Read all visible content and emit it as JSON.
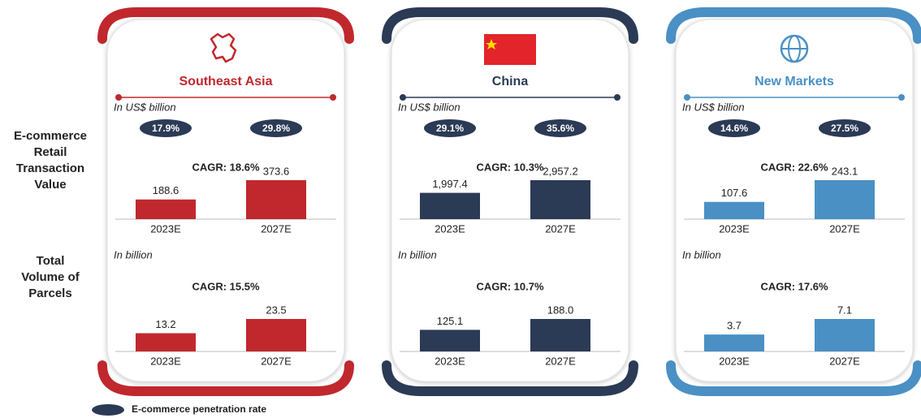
{
  "row_labels": [
    [
      "E-commerce",
      "Retail",
      "Transaction",
      "Value"
    ],
    [
      "Total",
      "Volume of",
      "Parcels"
    ]
  ],
  "legend": "E-commerce penetration rate",
  "panels": [
    {
      "title": "Southeast Asia",
      "color": "#c0282d"
    },
    {
      "title": "China",
      "color": "#2b3a55"
    },
    {
      "title": "New Markets",
      "color": "#4a90c4"
    }
  ],
  "chart_data": [
    {
      "type": "bar",
      "unit_note": "In US$ billion",
      "penetration": [
        "17.9%",
        "29.8%"
      ],
      "cagr": "CAGR: 18.6%",
      "categories": [
        "2023E",
        "2027E"
      ],
      "values": [
        188.6,
        373.6
      ],
      "color": "#c0282d"
    },
    {
      "type": "bar",
      "unit_note": "In billion",
      "cagr": "CAGR: 15.5%",
      "categories": [
        "2023E",
        "2027E"
      ],
      "values": [
        13.2,
        23.5
      ],
      "color": "#c0282d"
    },
    {
      "type": "bar",
      "unit_note": "In US$ billion",
      "penetration": [
        "29.1%",
        "35.6%"
      ],
      "cagr": "CAGR: 10.3%",
      "categories": [
        "2023E",
        "2027E"
      ],
      "values": [
        1997.4,
        2957.2
      ],
      "value_labels": [
        "1,997.4",
        "2,957.2"
      ],
      "color": "#2b3a55"
    },
    {
      "type": "bar",
      "unit_note": "In billion",
      "cagr": "CAGR: 10.7%",
      "categories": [
        "2023E",
        "2027E"
      ],
      "values": [
        125.1,
        188.0
      ],
      "value_labels": [
        "125.1",
        "188.0"
      ],
      "color": "#2b3a55"
    },
    {
      "type": "bar",
      "unit_note": "In US$ billion",
      "penetration": [
        "14.6%",
        "27.5%"
      ],
      "cagr": "CAGR: 22.6%",
      "categories": [
        "2023E",
        "2027E"
      ],
      "values": [
        107.6,
        243.1
      ],
      "color": "#4a90c4"
    },
    {
      "type": "bar",
      "unit_note": "In billion",
      "cagr": "CAGR: 17.6%",
      "categories": [
        "2023E",
        "2027E"
      ],
      "values": [
        3.7,
        7.1
      ],
      "color": "#4a90c4"
    }
  ]
}
